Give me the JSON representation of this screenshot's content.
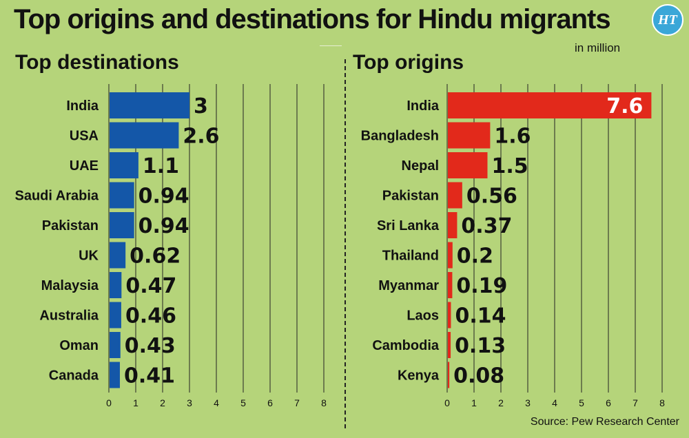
{
  "header": {
    "title": "Top origins and destinations for Hindu migrants",
    "unit_note": "in million",
    "logo_text": "HT"
  },
  "footer": {
    "source": "Source: Pew Research Center"
  },
  "colors": {
    "background": "#b5d47a",
    "destinations_bar": "#1457a8",
    "origins_bar": "#e2291b"
  },
  "chart_data": [
    {
      "type": "bar",
      "orientation": "horizontal",
      "title": "Top destinations",
      "categories": [
        "India",
        "USA",
        "UAE",
        "Saudi Arabia",
        "Pakistan",
        "UK",
        "Malaysia",
        "Australia",
        "Oman",
        "Canada"
      ],
      "values": [
        3,
        2.6,
        1.1,
        0.94,
        0.94,
        0.62,
        0.47,
        0.46,
        0.43,
        0.41
      ],
      "value_labels": [
        "3",
        "2.6",
        "1.1",
        "0.94",
        "0.94",
        "0.62",
        "0.47",
        "0.46",
        "0.43",
        "0.41"
      ],
      "xlim": [
        0,
        8
      ],
      "xticks": [
        "0",
        "1",
        "2",
        "3",
        "4",
        "5",
        "6",
        "7",
        "8"
      ],
      "grid": true,
      "color": "#1457a8"
    },
    {
      "type": "bar",
      "orientation": "horizontal",
      "title": "Top origins",
      "categories": [
        "India",
        "Bangladesh",
        "Nepal",
        "Pakistan",
        "Sri Lanka",
        "Thailand",
        "Myanmar",
        "Laos",
        "Cambodia",
        "Kenya"
      ],
      "values": [
        7.6,
        1.6,
        1.5,
        0.56,
        0.37,
        0.2,
        0.19,
        0.14,
        0.13,
        0.08
      ],
      "value_labels": [
        "7.6",
        "1.6",
        "1.5",
        "0.56",
        "0.37",
        "0.2",
        "0.19",
        "0.14",
        "0.13",
        "0.08"
      ],
      "xlim": [
        0,
        8
      ],
      "xticks": [
        "0",
        "1",
        "2",
        "3",
        "4",
        "5",
        "6",
        "7",
        "8"
      ],
      "grid": true,
      "color": "#e2291b"
    }
  ]
}
